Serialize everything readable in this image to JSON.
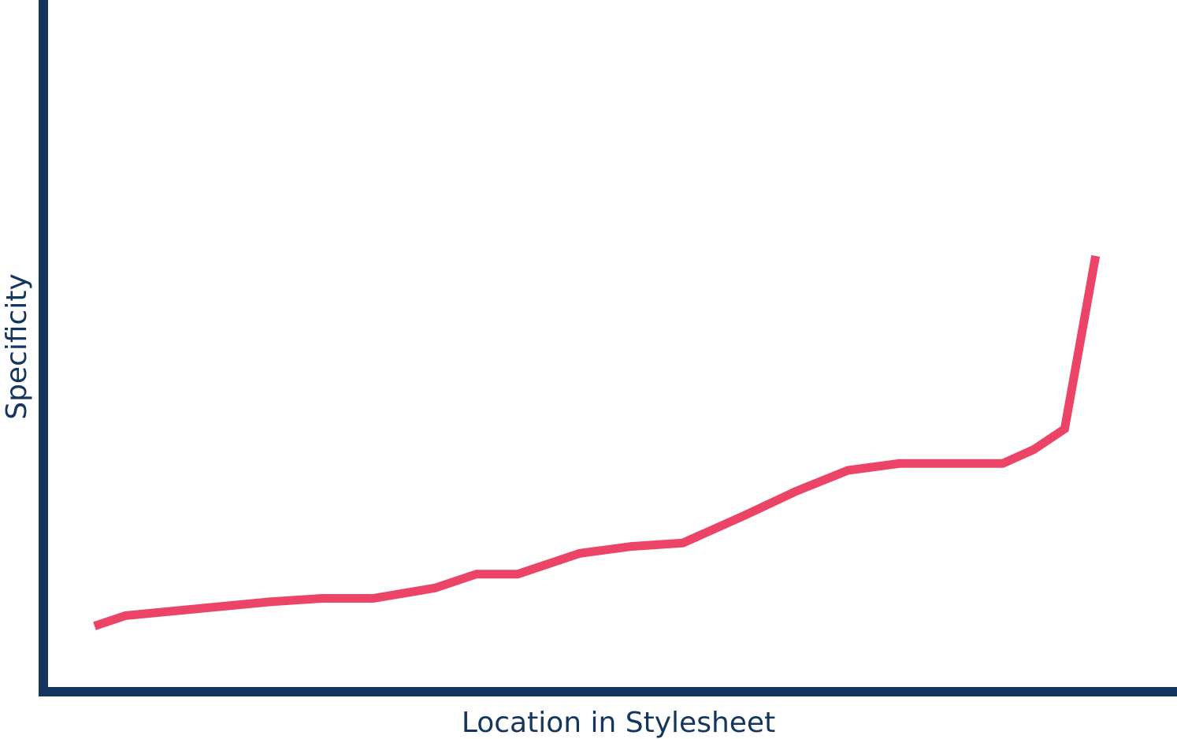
{
  "colors": {
    "axis": "#14365e",
    "line": "#ec4467",
    "background": "#ffffff"
  },
  "chart_data": {
    "type": "line",
    "xlabel": "Location in Stylesheet",
    "ylabel": "Specificity",
    "title": "",
    "grid": false,
    "legend": "none",
    "ticks": "none",
    "xlim": [
      0,
      100
    ],
    "ylim": [
      0,
      100
    ],
    "series": [
      {
        "x": [
          0,
          3,
          10,
          17,
          22,
          27,
          33,
          37,
          41,
          47,
          52,
          57,
          63,
          68,
          73,
          78,
          83,
          88,
          91,
          94,
          97
        ],
        "y": [
          9.5,
          11,
          12,
          13,
          13.5,
          13.5,
          15,
          17,
          17,
          20,
          21,
          21.5,
          25.5,
          29,
          32,
          33,
          33,
          33,
          35,
          38,
          63
        ]
      }
    ]
  }
}
